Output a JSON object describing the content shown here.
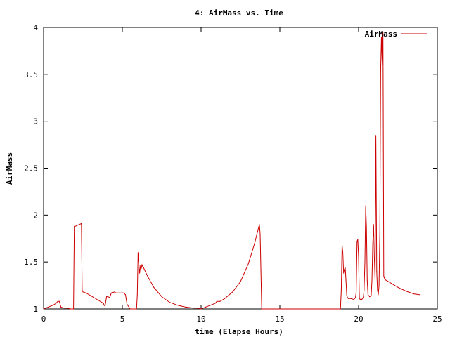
{
  "chart_data": {
    "type": "line",
    "title": "4: AirMass vs. Time",
    "xlabel": "time (Elapse Hours)",
    "ylabel": "AirMass",
    "xlim": [
      0,
      25
    ],
    "ylim": [
      1,
      4
    ],
    "xticks": [
      0,
      5,
      10,
      15,
      20,
      25
    ],
    "yticks": [
      1,
      1.5,
      2,
      2.5,
      3,
      3.5,
      4
    ],
    "xtick_labels": [
      "0",
      "5",
      "10",
      "15",
      "20",
      "25"
    ],
    "ytick_labels": [
      "1",
      "1.5",
      "2",
      "2.5",
      "3",
      "3.5",
      "4"
    ],
    "grid": false,
    "legend_position": "top-right",
    "series": [
      {
        "name": "AirMass",
        "color": "#cc0000",
        "x": [
          0,
          0.6,
          0.8,
          0.9,
          1.0,
          1.1,
          1.3,
          1.5,
          1.7,
          1.8,
          1.9,
          1.95,
          2.0,
          2.4,
          2.45,
          2.5,
          2.7,
          3.0,
          3.5,
          3.8,
          3.85,
          3.9,
          4.0,
          4.1,
          4.2,
          4.3,
          4.5,
          4.6,
          5.0,
          5.1,
          5.2,
          5.3,
          5.5,
          5.6,
          5.7,
          5.9,
          5.95,
          6.0,
          6.05,
          6.1,
          6.15,
          6.2,
          6.25,
          6.3,
          6.35,
          6.4,
          6.6,
          7.0,
          7.5,
          8.0,
          8.5,
          9.0,
          9.5,
          9.7,
          9.75,
          10.0,
          10.3,
          10.6,
          10.9,
          11.0,
          11.2,
          11.5,
          12.0,
          12.5,
          13.0,
          13.4,
          13.7,
          13.75,
          13.8,
          13.85,
          14.0,
          14.5,
          15.0,
          16.0,
          17.0,
          18.0,
          18.6,
          18.7,
          18.8,
          18.85,
          18.9,
          18.95,
          19.0,
          19.05,
          19.1,
          19.15,
          19.2,
          19.25,
          19.3,
          19.35,
          19.5,
          19.7,
          19.8,
          19.85,
          19.9,
          19.95,
          20.0,
          20.05,
          20.1,
          20.2,
          20.3,
          20.35,
          20.4,
          20.45,
          20.5,
          20.55,
          20.6,
          20.7,
          20.8,
          20.85,
          20.9,
          20.95,
          21.0,
          21.05,
          21.1,
          21.15,
          21.2,
          21.25,
          21.3,
          21.35,
          21.4,
          21.45,
          21.5,
          21.55,
          21.6,
          21.65,
          21.7,
          22.0,
          22.5,
          23.0,
          23.5,
          23.9
        ],
        "y": [
          1.0,
          1.04,
          1.06,
          1.08,
          1.08,
          1.02,
          1.01,
          1.01,
          1.0,
          1.0,
          1.0,
          1.88,
          1.88,
          1.91,
          1.2,
          1.18,
          1.17,
          1.14,
          1.09,
          1.06,
          1.04,
          1.03,
          1.13,
          1.13,
          1.12,
          1.17,
          1.18,
          1.17,
          1.17,
          1.17,
          1.15,
          1.05,
          1.0,
          1.0,
          1.0,
          1.0,
          1.15,
          1.6,
          1.48,
          1.38,
          1.46,
          1.43,
          1.47,
          1.45,
          1.44,
          1.42,
          1.35,
          1.23,
          1.13,
          1.07,
          1.04,
          1.02,
          1.01,
          1.01,
          1.01,
          1.0,
          1.02,
          1.04,
          1.06,
          1.08,
          1.08,
          1.11,
          1.18,
          1.29,
          1.48,
          1.7,
          1.9,
          1.8,
          1.4,
          1.0,
          1.0,
          1.0,
          1.0,
          1.0,
          1.0,
          1.0,
          1.0,
          1.0,
          1.0,
          1.0,
          1.2,
          1.68,
          1.6,
          1.38,
          1.42,
          1.44,
          1.3,
          1.14,
          1.12,
          1.11,
          1.11,
          1.1,
          1.12,
          1.18,
          1.72,
          1.74,
          1.55,
          1.12,
          1.1,
          1.1,
          1.12,
          1.2,
          1.5,
          2.1,
          1.87,
          1.3,
          1.15,
          1.13,
          1.14,
          1.3,
          1.7,
          1.9,
          1.55,
          1.3,
          2.85,
          1.4,
          1.2,
          1.15,
          1.25,
          1.8,
          3.55,
          3.9,
          3.6,
          3.95,
          1.35,
          1.32,
          1.31,
          1.28,
          1.23,
          1.19,
          1.16,
          1.15
        ]
      }
    ]
  }
}
